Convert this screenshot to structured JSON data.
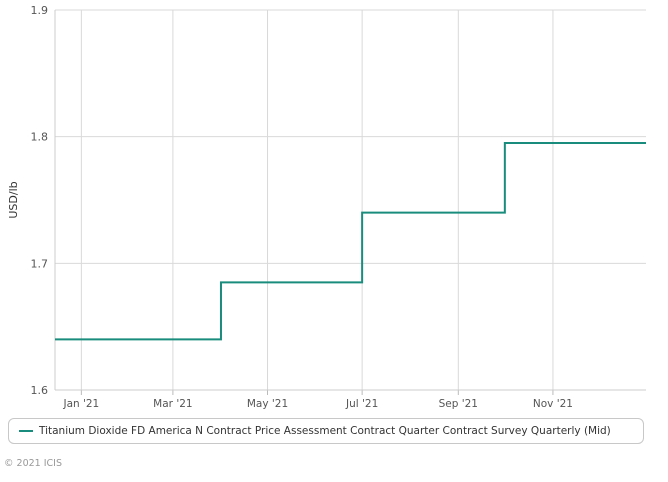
{
  "chart_data": {
    "type": "line",
    "step": true,
    "title": "",
    "xlabel": "",
    "ylabel": "USD/lb",
    "ylim": [
      1.6,
      1.9
    ],
    "y_ticks": [
      "1.6",
      "1.7",
      "1.8",
      "1.9"
    ],
    "x_ticks": [
      "Jan '21",
      "Mar '21",
      "May '21",
      "Jul '21",
      "Sep '21",
      "Nov '21"
    ],
    "grid": true,
    "legend_position": "bottom",
    "series": [
      {
        "name": "Titanium Dioxide FD America N Contract Price Assessment Contract Quarter Contract Survey Quarterly (Mid)",
        "color": "#1a8c7e",
        "points": [
          {
            "x": "2020-12-15",
            "y": 1.64
          },
          {
            "x": "2021-04-01",
            "y": 1.685
          },
          {
            "x": "2021-07-01",
            "y": 1.74
          },
          {
            "x": "2021-10-01",
            "y": 1.795
          },
          {
            "x": "2021-12-31",
            "y": 1.795
          }
        ]
      }
    ]
  },
  "credits": "© 2021 ICIS"
}
